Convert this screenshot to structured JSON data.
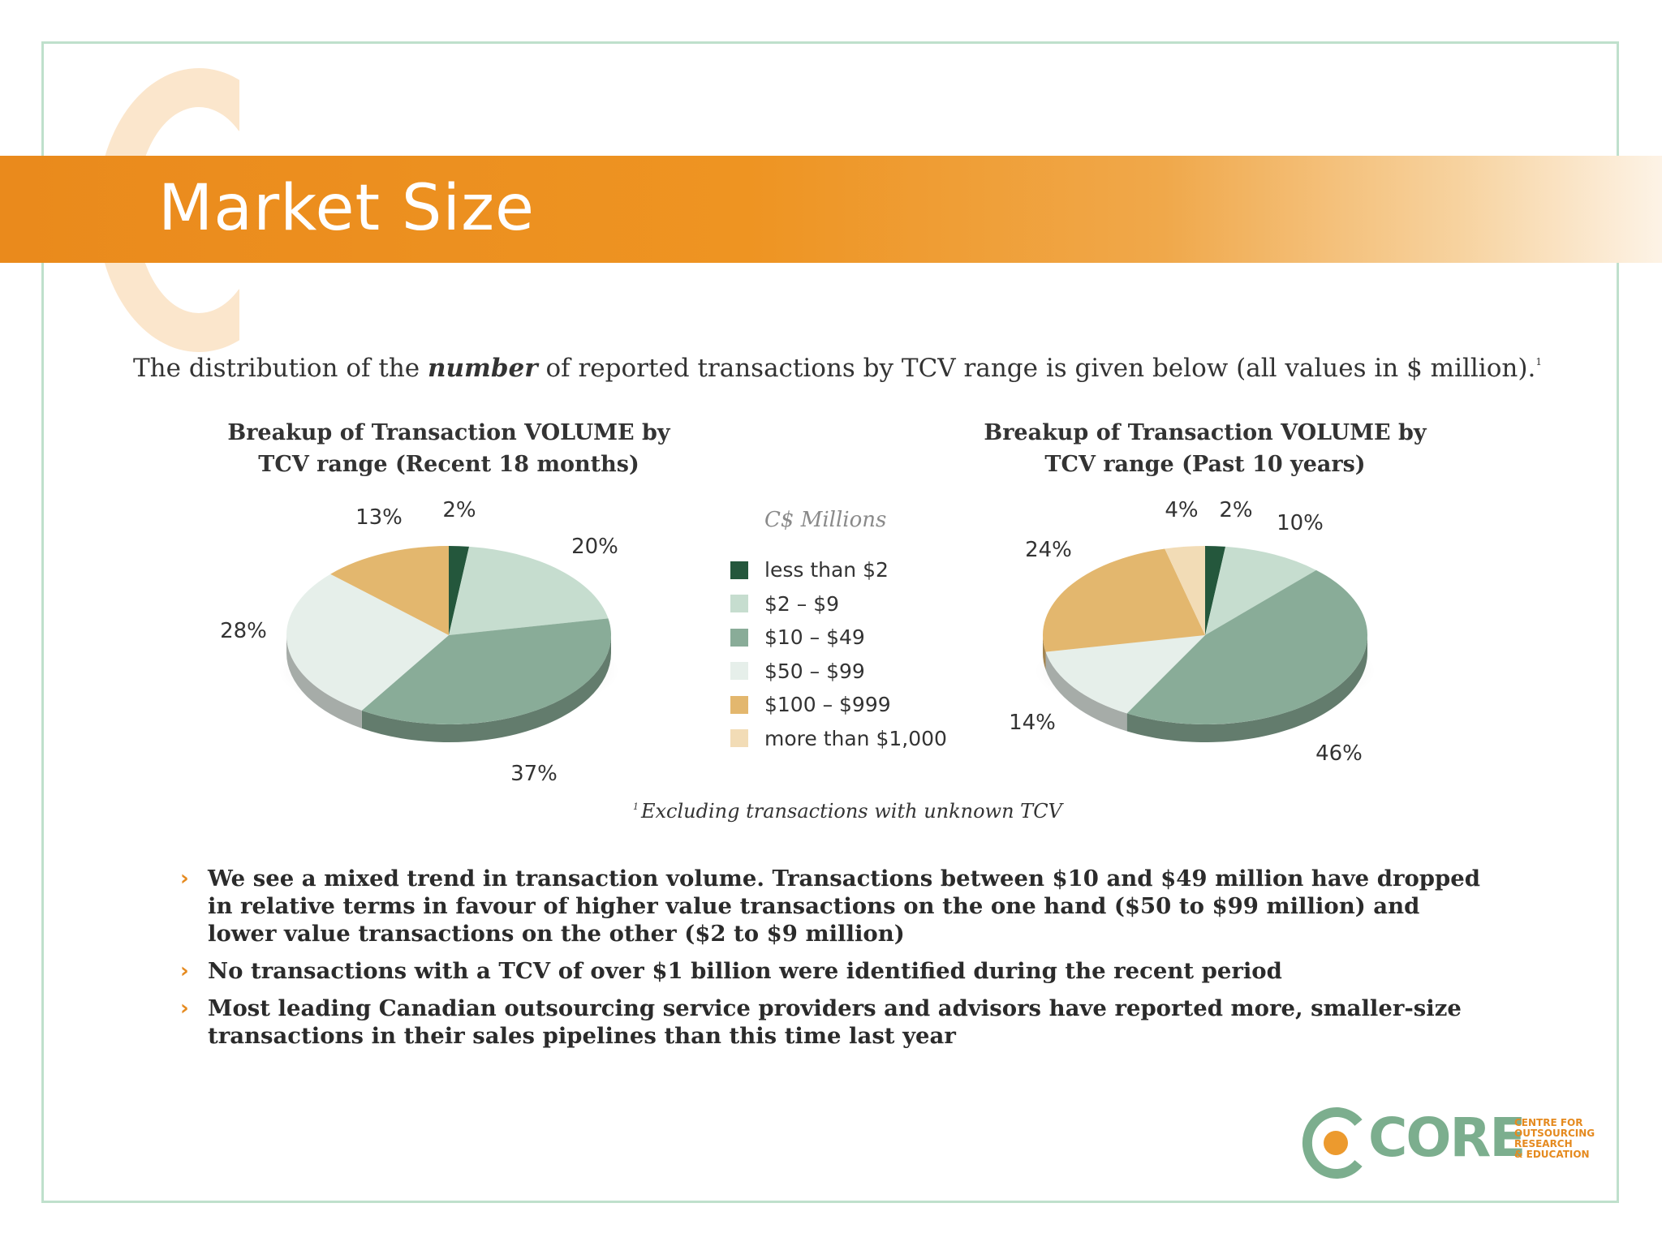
{
  "header": {
    "title": "Market Size"
  },
  "intro": {
    "before": "The distribution of the ",
    "emphasis": "number",
    "after": " of reported transactions by TCV range is given below (all values in $ million).",
    "marker": "1"
  },
  "legend": {
    "title": "C$ Millions",
    "items": [
      {
        "label": "less than  $2",
        "color": "#24573c"
      },
      {
        "label": "$2 – $9",
        "color": "#c6ddcf"
      },
      {
        "label": "$10 – $49",
        "color": "#89ac98"
      },
      {
        "label": "$50 – $99",
        "color": "#e6efea"
      },
      {
        "label": "$100 – $999",
        "color": "#e3b76e"
      },
      {
        "label": "more than  $1,000",
        "color": "#f2dcb6"
      }
    ]
  },
  "chart_data": [
    {
      "type": "pie",
      "title": "Breakup of Transaction VOLUME by TCV range (Recent 18 months)",
      "title_lines": [
        "Breakup of Transaction VOLUME by",
        "TCV range (Recent 18 months)"
      ],
      "categories": [
        "less than  $2",
        "$2 – $9",
        "$10 – $49",
        "$50 – $99",
        "$100 – $999",
        "more than  $1,000"
      ],
      "values": [
        2,
        20,
        37,
        28,
        13,
        0
      ],
      "labels": [
        "2%",
        "20%",
        "37%",
        "28%",
        "13%",
        ""
      ]
    },
    {
      "type": "pie",
      "title": "Breakup of Transaction VOLUME by TCV range (Past 10 years)",
      "title_lines": [
        "Breakup of Transaction VOLUME by",
        "TCV range (Past 10 years)"
      ],
      "categories": [
        "less than  $2",
        "$2 – $9",
        "$10 – $49",
        "$50 – $99",
        "$100 – $999",
        "more than  $1,000"
      ],
      "values": [
        2,
        10,
        46,
        14,
        24,
        4
      ],
      "labels": [
        "2%",
        "10%",
        "46%",
        "14%",
        "24%",
        "4%"
      ]
    }
  ],
  "footnote": {
    "marker": "1",
    "text": "Excluding transactions with unknown TCV"
  },
  "bullets": [
    "We see a mixed trend in transaction volume. Transactions between $10 and $49 million have dropped in relative terms in favour of higher value transactions on the one hand ($50 to $99 million) and lower value transactions on the other ($2 to $9 million)",
    "No transactions with a TCV of over $1 billion were identified during the recent period",
    "Most leading Canadian outsourcing service providers and advisors have reported more, smaller-size transactions in their sales pipelines than this time last year"
  ],
  "logo": {
    "word": "CORE",
    "sub": [
      "CENTRE FOR",
      "OUTSOURCING",
      "RESEARCH",
      "& EDUCATION"
    ]
  }
}
